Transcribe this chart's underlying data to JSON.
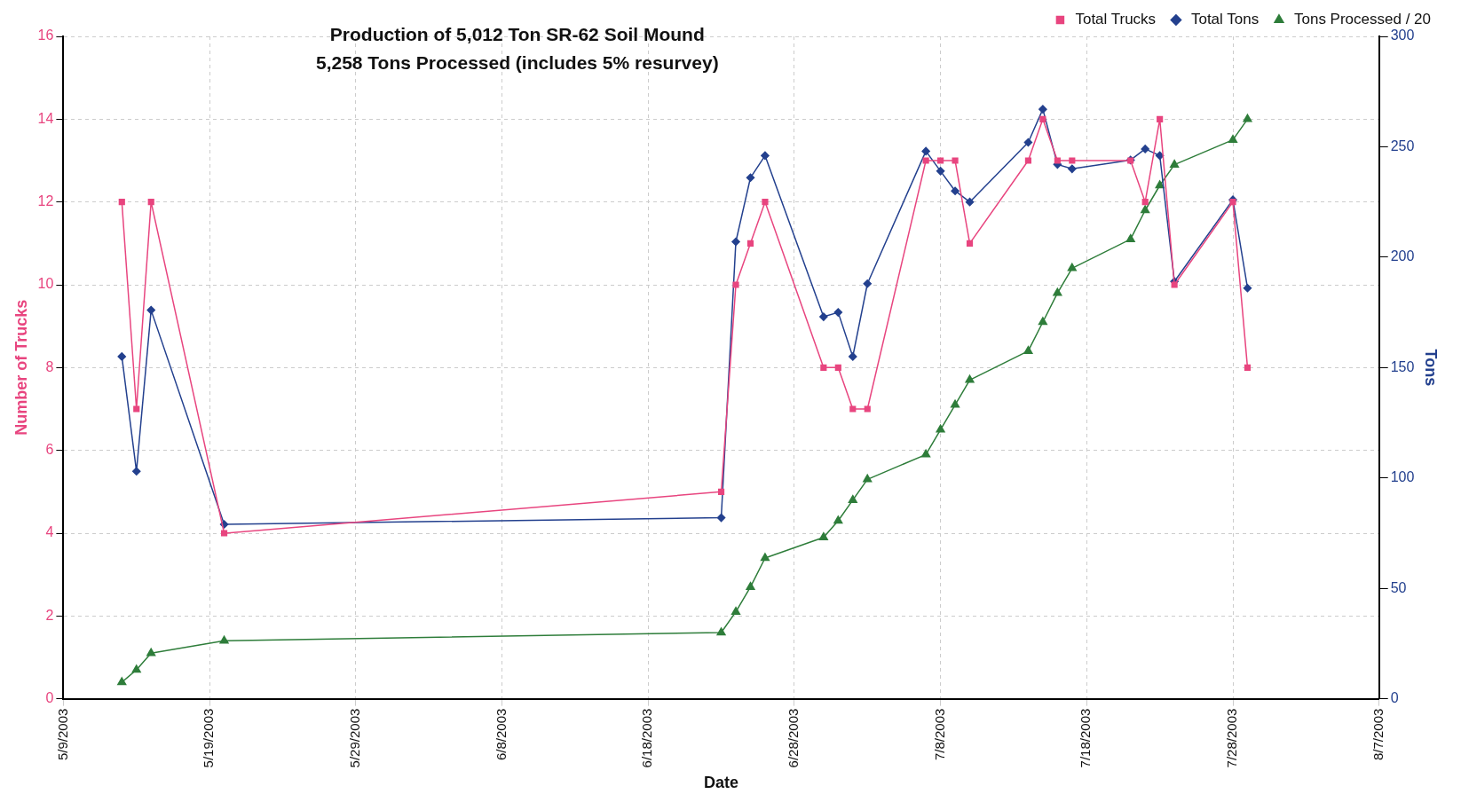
{
  "chart_data": {
    "type": "line",
    "title": "Production of 5,012 Ton SR-62 Soil Mound",
    "subtitle": "5,258 Tons Processed (includes 5% resurvey)",
    "xlabel": "Date",
    "ylabel": "Number of Trucks",
    "y2label": "Tons",
    "x": [
      "2003-05-13",
      "2003-05-14",
      "2003-05-15",
      "2003-05-20",
      "2003-06-23",
      "2003-06-24",
      "2003-06-25",
      "2003-06-26",
      "2003-06-30",
      "2003-07-01",
      "2003-07-02",
      "2003-07-03",
      "2003-07-07",
      "2003-07-08",
      "2003-07-09",
      "2003-07-10",
      "2003-07-14",
      "2003-07-15",
      "2003-07-16",
      "2003-07-17",
      "2003-07-21",
      "2003-07-22",
      "2003-07-23",
      "2003-07-24",
      "2003-07-28",
      "2003-07-29"
    ],
    "series": [
      {
        "name": "Total Trucks",
        "color": "#e8457f",
        "marker": "square",
        "values": [
          12,
          7,
          12,
          4,
          5,
          10,
          11,
          12,
          8,
          8,
          7,
          7,
          13,
          13,
          13,
          11,
          13,
          14,
          13,
          13,
          13,
          12,
          14,
          10,
          12,
          8
        ]
      },
      {
        "name": "Total Tons",
        "color": "#23408e",
        "marker": "diamond",
        "axis": "y2",
        "values": [
          155,
          103,
          176,
          79,
          82,
          207,
          236,
          246,
          173,
          175,
          155,
          188,
          248,
          239,
          230,
          225,
          252,
          267,
          242,
          240,
          244,
          249,
          246,
          189,
          226,
          186
        ]
      },
      {
        "name": "Tons Processed / 20",
        "color": "#2e7d3a",
        "marker": "triangle",
        "values": [
          0.4,
          0.7,
          1.1,
          1.4,
          1.6,
          2.1,
          2.7,
          3.4,
          3.9,
          4.3,
          4.8,
          5.3,
          5.9,
          6.5,
          7.1,
          7.7,
          8.4,
          9.1,
          9.8,
          10.4,
          11.1,
          11.8,
          12.4,
          12.9,
          13.5,
          14.0
        ]
      }
    ],
    "xlim": [
      "2003-05-09",
      "2003-08-07"
    ],
    "xticks": [
      {
        "value": "2003-05-09",
        "label": "5/9/2003"
      },
      {
        "value": "2003-05-19",
        "label": "5/19/2003"
      },
      {
        "value": "2003-05-29",
        "label": "5/29/2003"
      },
      {
        "value": "2003-06-08",
        "label": "6/8/2003"
      },
      {
        "value": "2003-06-18",
        "label": "6/18/2003"
      },
      {
        "value": "2003-06-28",
        "label": "6/28/2003"
      },
      {
        "value": "2003-07-08",
        "label": "7/8/2003"
      },
      {
        "value": "2003-07-18",
        "label": "7/18/2003"
      },
      {
        "value": "2003-07-28",
        "label": "7/28/2003"
      },
      {
        "value": "2003-08-07",
        "label": "8/7/2003"
      }
    ],
    "ylim": [
      0,
      16
    ],
    "yticks": [
      0,
      2,
      4,
      6,
      8,
      10,
      12,
      14,
      16
    ],
    "y2lim": [
      0,
      300
    ],
    "y2ticks": [
      0,
      50,
      100,
      150,
      200,
      250,
      300
    ],
    "grid": true,
    "legend": "top right"
  }
}
